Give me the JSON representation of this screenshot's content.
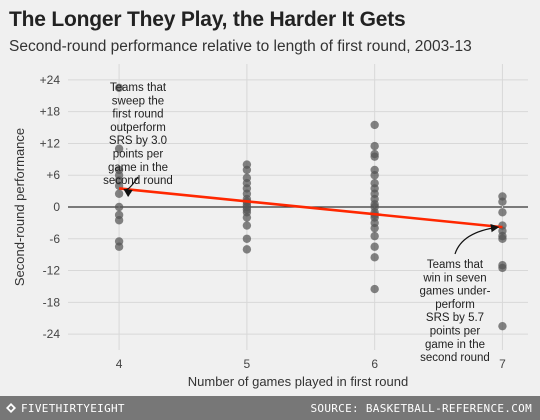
{
  "title": "The Longer They Play, the Harder It Gets",
  "subtitle": "Second-round performance relative to length of first round, 2003-13",
  "footer": {
    "brand": "FIVETHIRTYEIGHT",
    "source": "SOURCE: BASKETBALL-REFERENCE.COM"
  },
  "colors": {
    "background": "#f0f0f0",
    "points": "#555555",
    "trendline": "#ff2700",
    "zero_line": "#333333",
    "grid": "#d8d8d8"
  },
  "chart_data": {
    "type": "scatter",
    "xlabel": "Number of games played in first round",
    "ylabel": "Second-round performance",
    "xticks": [
      4,
      5,
      6,
      7
    ],
    "xlim": [
      3.6,
      7.2
    ],
    "ylim": [
      -27,
      27
    ],
    "yticks": [
      -24,
      -18,
      -12,
      -6,
      0,
      6,
      12,
      18,
      24
    ],
    "ytick_labels": [
      "-24",
      "-18",
      "-12",
      "-6",
      "0",
      "+6",
      "+12",
      "+18",
      "+24"
    ],
    "grid": true,
    "points": [
      {
        "x": 4,
        "y": 22.5
      },
      {
        "x": 4,
        "y": 11
      },
      {
        "x": 4,
        "y": 7
      },
      {
        "x": 4,
        "y": 6
      },
      {
        "x": 4,
        "y": 5
      },
      {
        "x": 4,
        "y": 4
      },
      {
        "x": 4,
        "y": 2.5
      },
      {
        "x": 4,
        "y": 0
      },
      {
        "x": 4,
        "y": -1.5
      },
      {
        "x": 4,
        "y": -2.5
      },
      {
        "x": 4,
        "y": -6.5
      },
      {
        "x": 4,
        "y": -7.5
      },
      {
        "x": 5,
        "y": 8
      },
      {
        "x": 5,
        "y": 7
      },
      {
        "x": 5,
        "y": 5.5
      },
      {
        "x": 5,
        "y": 4.5
      },
      {
        "x": 5,
        "y": 3.5
      },
      {
        "x": 5,
        "y": 2.5
      },
      {
        "x": 5,
        "y": 1.5
      },
      {
        "x": 5,
        "y": 1
      },
      {
        "x": 5,
        "y": 0.5
      },
      {
        "x": 5,
        "y": 0
      },
      {
        "x": 5,
        "y": -0.5
      },
      {
        "x": 5,
        "y": -1
      },
      {
        "x": 5,
        "y": -2
      },
      {
        "x": 5,
        "y": -3.5
      },
      {
        "x": 5,
        "y": -6
      },
      {
        "x": 5,
        "y": -8
      },
      {
        "x": 6,
        "y": 15.5
      },
      {
        "x": 6,
        "y": 11.5
      },
      {
        "x": 6,
        "y": 10
      },
      {
        "x": 6,
        "y": 9.5
      },
      {
        "x": 6,
        "y": 7
      },
      {
        "x": 6,
        "y": 6
      },
      {
        "x": 6,
        "y": 4.5
      },
      {
        "x": 6,
        "y": 3.5
      },
      {
        "x": 6,
        "y": 2.5
      },
      {
        "x": 6,
        "y": 1.5
      },
      {
        "x": 6,
        "y": 0.5
      },
      {
        "x": 6,
        "y": 0
      },
      {
        "x": 6,
        "y": -1
      },
      {
        "x": 6,
        "y": -1.5
      },
      {
        "x": 6,
        "y": -2
      },
      {
        "x": 6,
        "y": -3
      },
      {
        "x": 6,
        "y": -4
      },
      {
        "x": 6,
        "y": -5.5
      },
      {
        "x": 6,
        "y": -7.5
      },
      {
        "x": 6,
        "y": -9.5
      },
      {
        "x": 6,
        "y": -15.5
      },
      {
        "x": 7,
        "y": 2
      },
      {
        "x": 7,
        "y": 1
      },
      {
        "x": 7,
        "y": -1
      },
      {
        "x": 7,
        "y": -3.5
      },
      {
        "x": 7,
        "y": -4.5
      },
      {
        "x": 7,
        "y": -5.5
      },
      {
        "x": 7,
        "y": -6
      },
      {
        "x": 7,
        "y": -11
      },
      {
        "x": 7,
        "y": -11.5
      },
      {
        "x": 7,
        "y": -22.5
      }
    ],
    "trendline": {
      "x": [
        4,
        7
      ],
      "y": [
        3.5,
        -3.8
      ]
    },
    "annotations": [
      {
        "lines": [
          "Teams that",
          "sweep the",
          "first round",
          "outperform",
          "SRS by 3.0",
          "points per",
          "game in the",
          "second round"
        ],
        "arrow_to": {
          "x": 4,
          "y": 3.5
        }
      },
      {
        "lines": [
          "Teams that",
          "win in seven",
          "games under-",
          "perform",
          "SRS by 5.7",
          "points per",
          "game in the",
          "second round"
        ],
        "arrow_to": {
          "x": 7,
          "y": -3.8
        }
      }
    ]
  }
}
